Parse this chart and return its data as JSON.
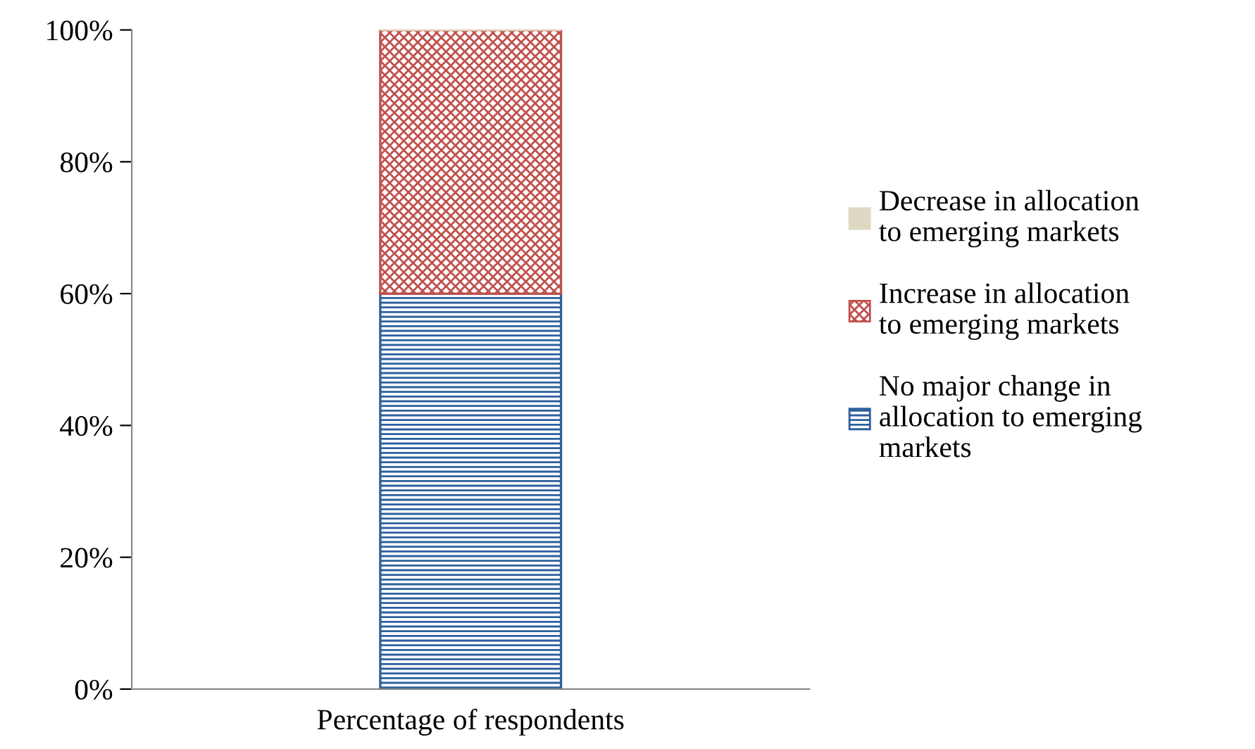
{
  "chart_data": {
    "type": "bar",
    "stacked": true,
    "categories": [
      "Percentage of respondents"
    ],
    "series": [
      {
        "name": "No major change in allocation to emerging markets",
        "color": "#2e5f9e",
        "values": [
          60
        ]
      },
      {
        "name": "Increase in allocation to emerging markets",
        "color": "#c0504d",
        "values": [
          40
        ]
      },
      {
        "name": "Decrease in allocation to emerging markets",
        "color": "#ddd9c3",
        "values": [
          0
        ]
      }
    ],
    "ylim": [
      0,
      100
    ],
    "yticks": [
      {
        "value": 0,
        "label": "0%"
      },
      {
        "value": 20,
        "label": "20%"
      },
      {
        "value": 40,
        "label": "40%"
      },
      {
        "value": 60,
        "label": "60%"
      },
      {
        "value": 80,
        "label": "80%"
      },
      {
        "value": 100,
        "label": "100%"
      }
    ],
    "grid": false,
    "legend": "right"
  }
}
